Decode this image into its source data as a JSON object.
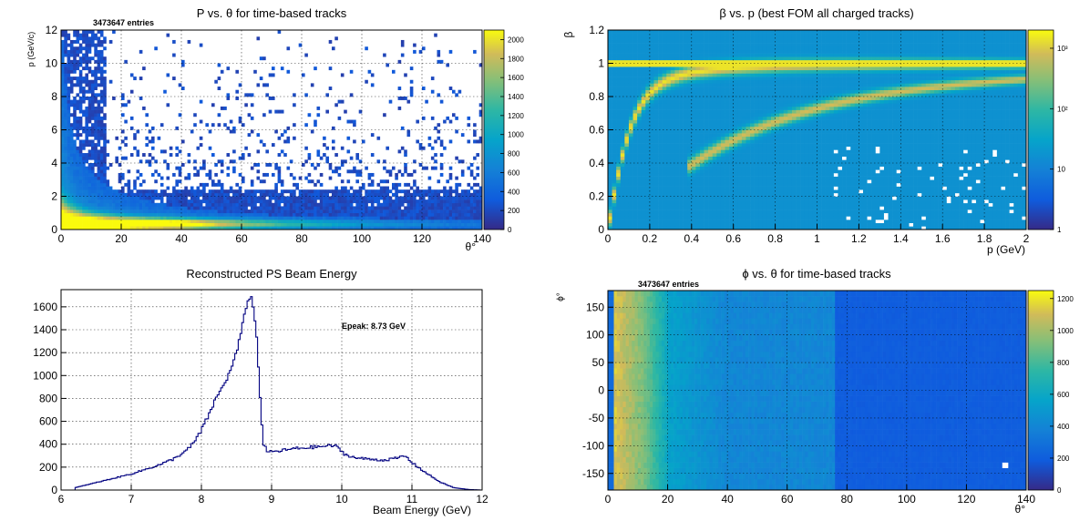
{
  "chart_data": [
    {
      "id": "p_vs_theta",
      "type": "heatmap",
      "title": "P vs. θ for time-based tracks",
      "stats_label": "3473647 entries",
      "xlabel": "θ°",
      "ylabel": "p (GeV/c)",
      "xlim": [
        0,
        140
      ],
      "ylim": [
        0,
        12
      ],
      "xticks": [
        0,
        20,
        40,
        60,
        80,
        100,
        120,
        140
      ],
      "yticks": [
        0,
        2,
        4,
        6,
        8,
        10,
        12
      ],
      "colorbar": {
        "scale": "linear",
        "range": [
          0,
          2100
        ],
        "ticks": [
          0,
          200,
          400,
          600,
          800,
          1000,
          1200,
          1400,
          1600,
          1800,
          2000
        ]
      },
      "grid": true
    },
    {
      "id": "beta_vs_p",
      "type": "heatmap",
      "title": "β vs. p (best FOM all charged tracks)",
      "xlabel": "p (GeV)",
      "ylabel": "β",
      "xlim": [
        0,
        2
      ],
      "ylim": [
        0,
        1.2
      ],
      "xticks": [
        0,
        0.2,
        0.4,
        0.6,
        0.8,
        1,
        1.2,
        1.4,
        1.6,
        1.8,
        2
      ],
      "yticks": [
        0,
        0.2,
        0.4,
        0.6,
        0.8,
        1,
        1.2
      ],
      "colorbar": {
        "scale": "log",
        "range": [
          1,
          2000
        ],
        "ticks": [
          "1",
          "10",
          "10²",
          "10³"
        ]
      },
      "grid": true
    },
    {
      "id": "beam_energy",
      "type": "line",
      "title": "Reconstructed PS Beam Energy",
      "annotation": "Epeak: 8.73 GeV",
      "xlabel": "Beam Energy (GeV)",
      "ylabel": "",
      "xlim": [
        6,
        12
      ],
      "ylim": [
        0,
        1750
      ],
      "xticks": [
        6,
        7,
        8,
        9,
        10,
        11,
        12
      ],
      "yticks": [
        0,
        200,
        400,
        600,
        800,
        1000,
        1200,
        1400,
        1600
      ],
      "x": [
        6.2,
        6.4,
        6.6,
        6.8,
        7.0,
        7.2,
        7.4,
        7.6,
        7.8,
        7.9,
        8.0,
        8.1,
        8.2,
        8.3,
        8.4,
        8.5,
        8.55,
        8.6,
        8.65,
        8.7,
        8.73,
        8.78,
        8.83,
        8.88,
        8.95,
        9.1,
        9.3,
        9.5,
        9.7,
        9.9,
        10.05,
        10.2,
        10.4,
        10.6,
        10.8,
        10.9,
        11.0,
        11.2,
        11.4,
        11.6,
        11.8,
        12.0
      ],
      "values": [
        20,
        50,
        80,
        110,
        140,
        180,
        220,
        270,
        350,
        420,
        520,
        650,
        790,
        900,
        1020,
        1200,
        1330,
        1480,
        1640,
        1700,
        1640,
        1400,
        900,
        400,
        330,
        340,
        360,
        370,
        380,
        390,
        310,
        280,
        270,
        260,
        280,
        300,
        240,
        150,
        70,
        20,
        5,
        0
      ],
      "grid": true
    },
    {
      "id": "phi_vs_theta",
      "type": "heatmap",
      "title": "ϕ vs. θ for time-based tracks",
      "stats_label": "3473647 entries",
      "xlabel": "θ°",
      "ylabel": "ϕ°",
      "xlim": [
        0,
        140
      ],
      "ylim": [
        -180,
        180
      ],
      "xticks": [
        0,
        20,
        40,
        60,
        80,
        100,
        120,
        140
      ],
      "yticks": [
        -150,
        -100,
        -50,
        0,
        50,
        100,
        150
      ],
      "colorbar": {
        "scale": "linear",
        "range": [
          0,
          1250
        ],
        "ticks": [
          0,
          200,
          400,
          600,
          800,
          1000,
          1200
        ]
      },
      "grid": true
    }
  ]
}
